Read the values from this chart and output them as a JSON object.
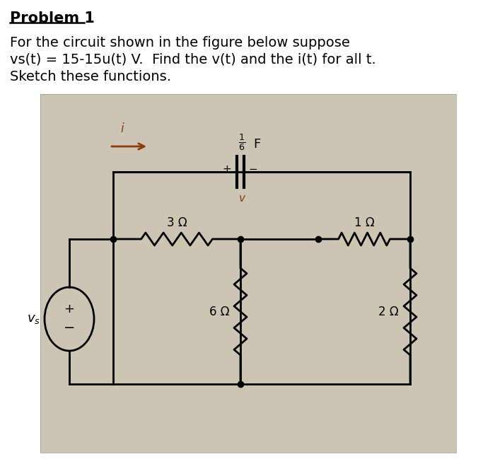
{
  "title": "Problem 1",
  "line1": "For the circuit shown in the figure below suppose",
  "line2": "vs(t) = 15-15u(t) V.  Find the v(t) and the i(t) for all t.",
  "line3": "Sketch these functions.",
  "bg_color": "#ffffff",
  "photo_bg": "#cdc5b4",
  "photo_bg2": "#bfb8a8",
  "line_color": "#000000",
  "arrow_color": "#8B3A10",
  "label_color": "#8B3A10",
  "text_color": "#000000",
  "resistor_3ohm": "3 Ω",
  "resistor_1ohm": "1 Ω",
  "resistor_6ohm": "6 Ω",
  "resistor_2ohm": "2 Ω"
}
